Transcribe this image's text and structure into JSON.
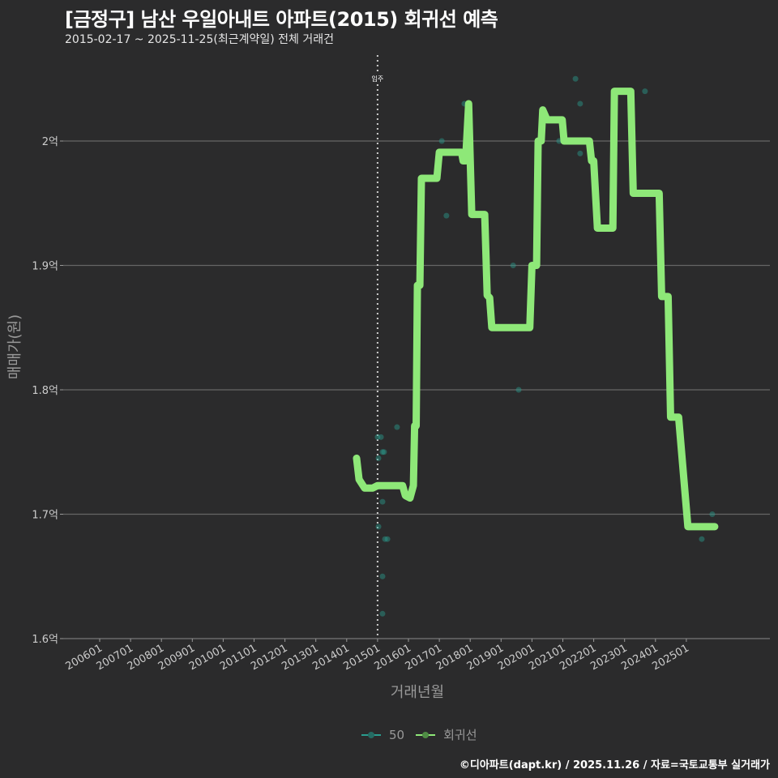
{
  "header": {
    "title": "[금정구] 남산 우일아내트 아파트(2015) 회귀선 예측",
    "subtitle": "2015-02-17 ~ 2025-11-25(최근계약일) 전체 거래건"
  },
  "caption": "©디아파트(dapt.kr) / 2025.11.26 / 자료=국토교통부 실거래가",
  "chart_data": {
    "type": "line",
    "title": "[금정구] 남산 우일아내트 아파트(2015) 회귀선 예측",
    "xlabel": "거래년월",
    "ylabel": "매매가(원)",
    "xlim": [
      2005.2,
      2026.9
    ],
    "ylim": [
      1.6,
      2.08
    ],
    "x_ticks": [
      "200601",
      "200701",
      "200801",
      "200901",
      "201001",
      "201101",
      "201201",
      "201301",
      "201401",
      "201501",
      "201601",
      "201701",
      "201801",
      "201901",
      "202001",
      "202101",
      "202201",
      "202301",
      "202401",
      "202501"
    ],
    "y_ticks": [
      {
        "v": 1.6,
        "label": "1.6억"
      },
      {
        "v": 1.7,
        "label": "1.7억"
      },
      {
        "v": 1.8,
        "label": "1.8억"
      },
      {
        "v": 1.9,
        "label": "1.9억"
      },
      {
        "v": 2.0,
        "label": "2억"
      }
    ],
    "annotation": {
      "x": 2015.0,
      "label": "입주"
    },
    "legend": {
      "position": "bottom",
      "entries": [
        "50",
        "회귀선"
      ]
    },
    "colors": {
      "scatter": "#2a9d8f",
      "line": "#8ee878"
    },
    "series": [
      {
        "name": "50",
        "type": "scatter",
        "points": [
          [
            2015.0,
            1.762
          ],
          [
            2015.11,
            1.762
          ],
          [
            2015.16,
            1.75
          ],
          [
            2015.21,
            1.75
          ],
          [
            2015.03,
            1.745
          ],
          [
            2015.63,
            1.77
          ],
          [
            2017.08,
            2.0
          ],
          [
            2017.23,
            1.94
          ],
          [
            2017.81,
            2.03
          ],
          [
            2017.92,
            1.99
          ],
          [
            2019.39,
            1.9
          ],
          [
            2019.57,
            1.8
          ],
          [
            2020.88,
            2.0
          ],
          [
            2021.41,
            2.05
          ],
          [
            2021.56,
            2.03
          ],
          [
            2021.56,
            1.99
          ],
          [
            2022.09,
            1.93
          ],
          [
            2023.66,
            2.04
          ],
          [
            2024.27,
            1.875
          ],
          [
            2025.5,
            1.68
          ],
          [
            2025.84,
            1.7
          ],
          [
            2015.03,
            1.69
          ],
          [
            2015.16,
            1.71
          ],
          [
            2015.24,
            1.68
          ],
          [
            2015.32,
            1.68
          ],
          [
            2015.16,
            1.65
          ],
          [
            2015.16,
            1.62
          ]
        ]
      },
      {
        "name": "회귀선",
        "type": "line",
        "points": [
          [
            2014.32,
            1.745
          ],
          [
            2014.4,
            1.728
          ],
          [
            2014.58,
            1.721
          ],
          [
            2014.84,
            1.721
          ],
          [
            2015.0,
            1.723
          ],
          [
            2015.81,
            1.723
          ],
          [
            2015.9,
            1.715
          ],
          [
            2016.05,
            1.713
          ],
          [
            2016.16,
            1.723
          ],
          [
            2016.2,
            1.771
          ],
          [
            2016.25,
            1.771
          ],
          [
            2016.29,
            1.884
          ],
          [
            2016.37,
            1.884
          ],
          [
            2016.42,
            1.97
          ],
          [
            2016.92,
            1.97
          ],
          [
            2017.0,
            1.991
          ],
          [
            2017.72,
            1.991
          ],
          [
            2017.77,
            1.984
          ],
          [
            2017.85,
            1.984
          ],
          [
            2017.95,
            2.03
          ],
          [
            2018.05,
            1.941
          ],
          [
            2018.47,
            1.941
          ],
          [
            2018.55,
            1.876
          ],
          [
            2018.63,
            1.874
          ],
          [
            2018.7,
            1.85
          ],
          [
            2019.93,
            1.85
          ],
          [
            2020.0,
            1.9
          ],
          [
            2020.15,
            1.9
          ],
          [
            2020.2,
            2.0
          ],
          [
            2020.3,
            2.0
          ],
          [
            2020.35,
            2.025
          ],
          [
            2020.49,
            2.017
          ],
          [
            2020.98,
            2.017
          ],
          [
            2021.04,
            2.0
          ],
          [
            2021.86,
            2.0
          ],
          [
            2021.93,
            1.984
          ],
          [
            2022.0,
            1.984
          ],
          [
            2022.12,
            1.93
          ],
          [
            2022.62,
            1.93
          ],
          [
            2022.67,
            2.04
          ],
          [
            2023.2,
            2.04
          ],
          [
            2023.28,
            1.958
          ],
          [
            2024.12,
            1.958
          ],
          [
            2024.2,
            1.875
          ],
          [
            2024.41,
            1.875
          ],
          [
            2024.49,
            1.778
          ],
          [
            2024.75,
            1.778
          ],
          [
            2025.05,
            1.69
          ],
          [
            2025.92,
            1.69
          ]
        ]
      }
    ]
  }
}
